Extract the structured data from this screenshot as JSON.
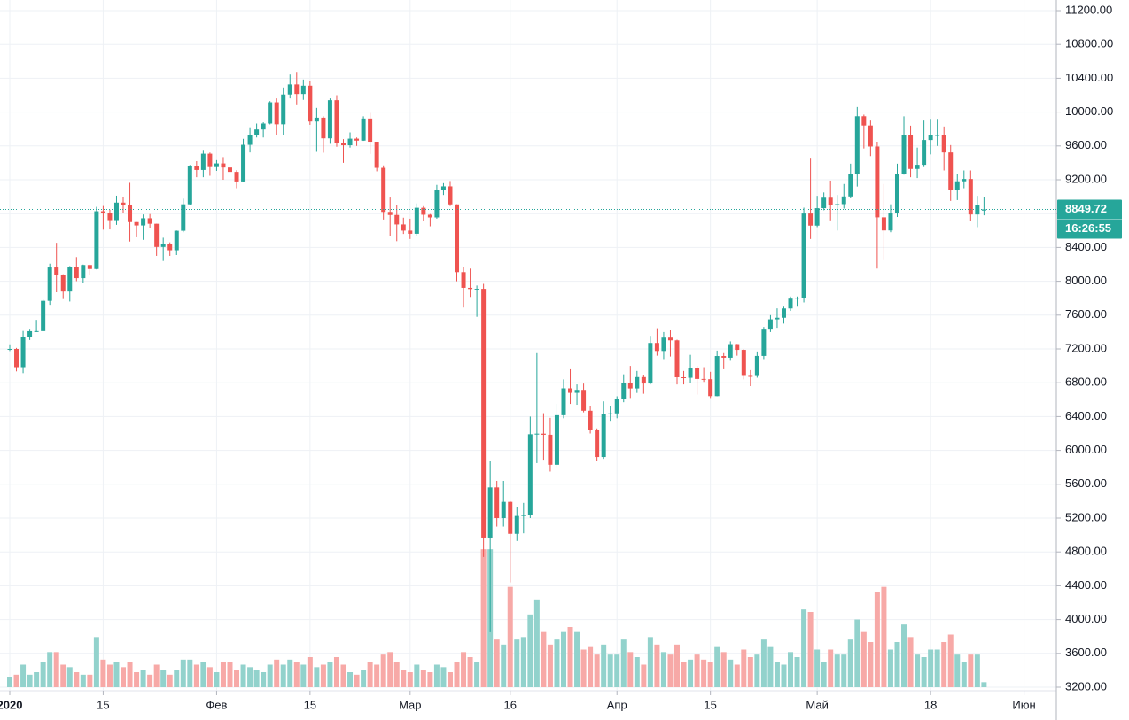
{
  "chart_data": {
    "type": "candlestick",
    "x": [
      "2020-01-01",
      "2020-01-02",
      "2020-01-03",
      "2020-01-04",
      "2020-01-05",
      "2020-01-06",
      "2020-01-07",
      "2020-01-08",
      "2020-01-09",
      "2020-01-10",
      "2020-01-11",
      "2020-01-12",
      "2020-01-13",
      "2020-01-14",
      "2020-01-15",
      "2020-01-16",
      "2020-01-17",
      "2020-01-18",
      "2020-01-19",
      "2020-01-20",
      "2020-01-21",
      "2020-01-22",
      "2020-01-23",
      "2020-01-24",
      "2020-01-25",
      "2020-01-26",
      "2020-01-27",
      "2020-01-28",
      "2020-01-29",
      "2020-01-30",
      "2020-01-31",
      "2020-02-01",
      "2020-02-02",
      "2020-02-03",
      "2020-02-04",
      "2020-02-05",
      "2020-02-06",
      "2020-02-07",
      "2020-02-08",
      "2020-02-09",
      "2020-02-10",
      "2020-02-11",
      "2020-02-12",
      "2020-02-13",
      "2020-02-14",
      "2020-02-15",
      "2020-02-16",
      "2020-02-17",
      "2020-02-18",
      "2020-02-19",
      "2020-02-20",
      "2020-02-21",
      "2020-02-22",
      "2020-02-23",
      "2020-02-24",
      "2020-02-25",
      "2020-02-26",
      "2020-02-27",
      "2020-02-28",
      "2020-02-29",
      "2020-03-01",
      "2020-03-02",
      "2020-03-03",
      "2020-03-04",
      "2020-03-05",
      "2020-03-06",
      "2020-03-07",
      "2020-03-08",
      "2020-03-09",
      "2020-03-10",
      "2020-03-11",
      "2020-03-12",
      "2020-03-13",
      "2020-03-14",
      "2020-03-15",
      "2020-03-16",
      "2020-03-17",
      "2020-03-18",
      "2020-03-19",
      "2020-03-20",
      "2020-03-21",
      "2020-03-22",
      "2020-03-23",
      "2020-03-24",
      "2020-03-25",
      "2020-03-26",
      "2020-03-27",
      "2020-03-28",
      "2020-03-29",
      "2020-03-30",
      "2020-03-31",
      "2020-04-01",
      "2020-04-02",
      "2020-04-03",
      "2020-04-04",
      "2020-04-05",
      "2020-04-06",
      "2020-04-07",
      "2020-04-08",
      "2020-04-09",
      "2020-04-10",
      "2020-04-11",
      "2020-04-12",
      "2020-04-13",
      "2020-04-14",
      "2020-04-15",
      "2020-04-16",
      "2020-04-17",
      "2020-04-18",
      "2020-04-19",
      "2020-04-20",
      "2020-04-21",
      "2020-04-22",
      "2020-04-23",
      "2020-04-24",
      "2020-04-25",
      "2020-04-26",
      "2020-04-27",
      "2020-04-28",
      "2020-04-29",
      "2020-04-30",
      "2020-05-01",
      "2020-05-02",
      "2020-05-03",
      "2020-05-04",
      "2020-05-05",
      "2020-05-06",
      "2020-05-07",
      "2020-05-08",
      "2020-05-09",
      "2020-05-10",
      "2020-05-11",
      "2020-05-12",
      "2020-05-13",
      "2020-05-14",
      "2020-05-15",
      "2020-05-16",
      "2020-05-17",
      "2020-05-18",
      "2020-05-19",
      "2020-05-20",
      "2020-05-21",
      "2020-05-22",
      "2020-05-23",
      "2020-05-24",
      "2020-05-25",
      "2020-05-26"
    ],
    "open": [
      7195,
      7200,
      6985,
      7345,
      7410,
      7411,
      7769,
      8163,
      8079,
      7879,
      8166,
      8037,
      8192,
      8145,
      8828,
      8808,
      8723,
      8930,
      8900,
      8700,
      8660,
      8745,
      8680,
      8406,
      8445,
      8367,
      8597,
      8910,
      9358,
      9316,
      9508,
      9350,
      9393,
      9345,
      9293,
      9180,
      9613,
      9729,
      9795,
      9865,
      10116,
      9856,
      10208,
      10327,
      10214,
      10312,
      9889,
      9934,
      9690,
      10141,
      9633,
      9608,
      9686,
      9663,
      9924,
      9650,
      9341,
      8820,
      8784,
      8672,
      8599,
      8562,
      8869,
      8787,
      8755,
      9078,
      9122,
      8909,
      8108,
      7923,
      7909,
      7911,
      4970,
      5563,
      5200,
      5392,
      5014,
      5225,
      5238,
      6191,
      6198,
      6185,
      5830,
      6416,
      6734,
      6681,
      6716,
      6469,
      6242,
      5922,
      6429,
      6438,
      6606,
      6793,
      6733,
      6867,
      6791,
      7271,
      7176,
      7334,
      7302,
      6865,
      6859,
      6971,
      6845,
      6842,
      6642,
      7116,
      7096,
      7257,
      7189,
      6881,
      6880,
      7117,
      7429,
      7550,
      7569,
      7679,
      7795,
      7807,
      8801,
      8658,
      8864,
      8988,
      8897,
      8912,
      9003,
      9268,
      9951,
      9842,
      9593,
      8756,
      8601,
      8804,
      9269,
      9733,
      9328,
      9377,
      9670,
      9727,
      9729,
      9523,
      9081,
      9182,
      9209,
      8790,
      8836
    ],
    "high": [
      7255,
      7212,
      7413,
      7428,
      7544,
      7781,
      8208,
      8455,
      8083,
      8180,
      8286,
      8197,
      8197,
      8880,
      8890,
      8846,
      9012,
      9000,
      9164,
      8700,
      8790,
      8795,
      8680,
      8515,
      8460,
      8600,
      8977,
      9375,
      9420,
      9553,
      9522,
      9432,
      9468,
      9568,
      9313,
      9684,
      9821,
      9865,
      9880,
      10130,
      10162,
      10291,
      10444,
      10475,
      10385,
      10371,
      10050,
      9950,
      10162,
      10200,
      9680,
      9760,
      9700,
      9950,
      9990,
      9650,
      9370,
      8990,
      8900,
      8752,
      8740,
      8920,
      8888,
      8795,
      9140,
      9160,
      9185,
      8910,
      8170,
      8150,
      7950,
      7970,
      5870,
      5640,
      5640,
      5400,
      5330,
      5380,
      6400,
      7150,
      6440,
      6385,
      6550,
      6840,
      6960,
      6780,
      6790,
      6530,
      6260,
      6580,
      6520,
      6640,
      6900,
      7000,
      6940,
      6890,
      7355,
      7445,
      7400,
      7420,
      7310,
      6940,
      7130,
      7000,
      6985,
      6930,
      7180,
      7150,
      7290,
      7260,
      7200,
      6950,
      7170,
      7460,
      7600,
      7680,
      7700,
      7820,
      7820,
      8870,
      9460,
      9010,
      9050,
      9190,
      9020,
      9150,
      9390,
      10060,
      9970,
      9900,
      9650,
      9150,
      8910,
      9390,
      9950,
      9840,
      9580,
      9900,
      9920,
      9920,
      9830,
      9610,
      9270,
      9310,
      9310,
      9010,
      9000
    ],
    "low": [
      7175,
      6935,
      6914,
      7306,
      7400,
      7409,
      7722,
      7870,
      7790,
      7761,
      8001,
      7985,
      8079,
      8140,
      8610,
      8613,
      8667,
      8810,
      8470,
      8520,
      8490,
      8630,
      8300,
      8240,
      8300,
      8310,
      8580,
      8900,
      9230,
      9230,
      9247,
      9305,
      9200,
      9230,
      9100,
      9173,
      9523,
      9700,
      9700,
      9855,
      9730,
      9730,
      10162,
      10092,
      10145,
      9850,
      9530,
      9520,
      9625,
      9590,
      9400,
      9580,
      9600,
      9660,
      9505,
      9300,
      8730,
      8540,
      8474,
      8560,
      8500,
      8530,
      8710,
      8650,
      8740,
      9020,
      8890,
      8000,
      7690,
      7815,
      7580,
      4740,
      3850,
      5100,
      5100,
      4440,
      4930,
      5020,
      5200,
      5850,
      5890,
      5750,
      5800,
      6380,
      6550,
      6540,
      6450,
      6200,
      5880,
      5900,
      6350,
      6380,
      6570,
      6620,
      6680,
      6670,
      6780,
      7120,
      7080,
      7110,
      6780,
      6780,
      6800,
      6660,
      6810,
      6620,
      6640,
      6960,
      7060,
      7120,
      6840,
      6760,
      6860,
      7080,
      7400,
      7450,
      7500,
      7650,
      7700,
      7750,
      8500,
      8640,
      8840,
      8720,
      8600,
      8860,
      8980,
      9120,
      9570,
      9480,
      8150,
      8250,
      8580,
      8760,
      9260,
      9230,
      9220,
      9350,
      9500,
      9600,
      9310,
      8950,
      8960,
      9100,
      8710,
      8640,
      8780
    ],
    "close": [
      7200,
      6985,
      7345,
      7410,
      7411,
      7769,
      8163,
      8079,
      7879,
      8166,
      8037,
      8192,
      8145,
      8828,
      8808,
      8723,
      8930,
      8900,
      8700,
      8660,
      8745,
      8680,
      8406,
      8445,
      8367,
      8597,
      8910,
      9358,
      9316,
      9508,
      9350,
      9393,
      9345,
      9293,
      9180,
      9613,
      9729,
      9795,
      9865,
      10116,
      9856,
      10208,
      10327,
      10214,
      10312,
      9889,
      9934,
      9690,
      10141,
      9633,
      9608,
      9686,
      9663,
      9924,
      9650,
      9341,
      8820,
      8784,
      8672,
      8599,
      8562,
      8869,
      8787,
      8755,
      9078,
      9122,
      8909,
      8108,
      7923,
      7909,
      7911,
      4970,
      5563,
      5200,
      5392,
      5014,
      5225,
      5238,
      6191,
      6198,
      6185,
      5830,
      6416,
      6734,
      6681,
      6716,
      6469,
      6242,
      5922,
      6429,
      6438,
      6606,
      6793,
      6733,
      6867,
      6791,
      7271,
      7176,
      7334,
      7302,
      6865,
      6859,
      6971,
      6845,
      6842,
      6642,
      7116,
      7096,
      7257,
      7189,
      6881,
      6880,
      7117,
      7429,
      7550,
      7569,
      7679,
      7795,
      7807,
      8801,
      8658,
      8864,
      8988,
      8897,
      8912,
      9003,
      9268,
      9951,
      9842,
      9593,
      8756,
      8601,
      8804,
      9269,
      9733,
      9328,
      9377,
      9670,
      9727,
      9729,
      9523,
      9081,
      9182,
      9209,
      8790,
      8906,
      8849.72
    ],
    "volume": [
      4,
      5,
      9,
      5,
      6,
      10,
      14,
      14,
      9,
      8,
      6,
      5,
      5,
      20,
      11,
      9,
      10,
      8,
      10,
      6,
      7,
      5,
      9,
      7,
      5,
      7,
      11,
      11,
      9,
      10,
      8,
      6,
      10,
      10,
      7,
      9,
      8,
      7,
      6,
      9,
      11,
      9,
      11,
      10,
      9,
      12,
      8,
      9,
      10,
      12,
      9,
      6,
      5,
      7,
      10,
      9,
      13,
      14,
      10,
      7,
      6,
      9,
      7,
      6,
      9,
      8,
      6,
      10,
      14,
      12,
      10,
      55,
      55,
      19,
      17,
      40,
      19,
      20,
      29,
      35,
      22,
      17,
      19,
      22,
      24,
      22,
      15,
      16,
      13,
      17,
      13,
      13,
      19,
      14,
      12,
      9,
      20,
      17,
      14,
      13,
      17,
      10,
      11,
      13,
      11,
      10,
      16,
      14,
      11,
      9,
      15,
      12,
      13,
      19,
      16,
      10,
      9,
      14,
      12,
      31,
      30,
      15,
      10,
      15,
      13,
      13,
      19,
      27,
      22,
      18,
      38,
      40,
      15,
      18,
      25,
      20,
      13,
      12,
      15,
      15,
      18,
      21,
      13,
      10,
      13,
      13,
      2
    ],
    "volume_ylim": [
      0,
      60
    ],
    "up_color": "#26a69a",
    "down_color": "#ef5350",
    "volume_up_color": "#92d2cc",
    "volume_down_color": "#f7a9a7",
    "ylim": [
      3200,
      11200
    ],
    "yticks": [
      {
        "value": 3200,
        "label": "3200.00"
      },
      {
        "value": 3600,
        "label": "3600.00"
      },
      {
        "value": 4000,
        "label": "4000.00"
      },
      {
        "value": 4400,
        "label": "4400.00"
      },
      {
        "value": 4800,
        "label": "4800.00"
      },
      {
        "value": 5200,
        "label": "5200.00"
      },
      {
        "value": 5600,
        "label": "5600.00"
      },
      {
        "value": 6000,
        "label": "6000.00"
      },
      {
        "value": 6400,
        "label": "6400.00"
      },
      {
        "value": 6800,
        "label": "6800.00"
      },
      {
        "value": 7200,
        "label": "7200.00"
      },
      {
        "value": 7600,
        "label": "7600.00"
      },
      {
        "value": 8000,
        "label": "8000.00"
      },
      {
        "value": 8400,
        "label": "8400.00"
      },
      {
        "value": 8800,
        "label": "8800.00"
      },
      {
        "value": 9200,
        "label": "9200.00"
      },
      {
        "value": 9600,
        "label": "9600.00"
      },
      {
        "value": 10000,
        "label": "10000.00"
      },
      {
        "value": 10400,
        "label": "10400.00"
      },
      {
        "value": 10800,
        "label": "10800.00"
      },
      {
        "value": 11200,
        "label": "11200.00"
      }
    ],
    "xticks": [
      {
        "value": "2020-01-01",
        "label": "2020"
      },
      {
        "value": "2020-01-15",
        "label": "15"
      },
      {
        "value": "2020-02-01",
        "label": "Фев"
      },
      {
        "value": "2020-02-15",
        "label": "15"
      },
      {
        "value": "2020-03-01",
        "label": "Мар"
      },
      {
        "value": "2020-03-16",
        "label": "16"
      },
      {
        "value": "2020-04-01",
        "label": "Апр"
      },
      {
        "value": "2020-04-15",
        "label": "15"
      },
      {
        "value": "2020-05-01",
        "label": "Май"
      },
      {
        "value": "2020-05-18",
        "label": "18"
      },
      {
        "value": "2020-06-01",
        "label": "Июн"
      }
    ],
    "grid": true,
    "last_price_color": "#26a69a",
    "countdown": "16:26:55"
  }
}
